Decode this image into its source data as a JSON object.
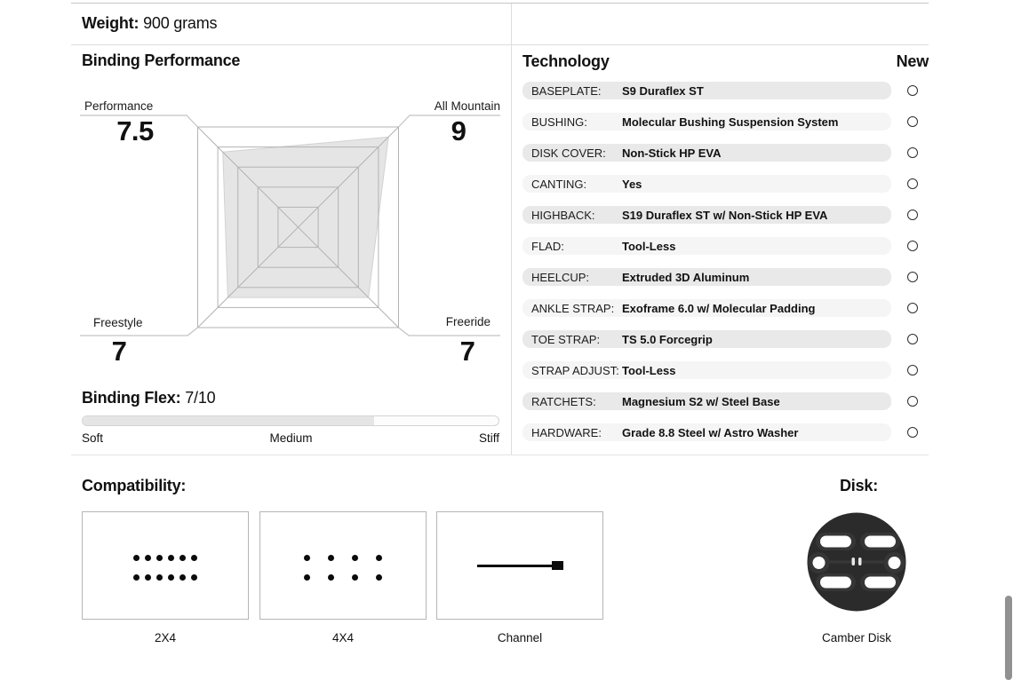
{
  "weight": {
    "label": "Weight:",
    "value": "900 grams"
  },
  "performance_section": {
    "title": "Binding Performance"
  },
  "chart_data": {
    "type": "radar",
    "title": "Binding Performance",
    "max": 10,
    "rings": [
      0.2,
      0.4,
      0.6,
      0.8,
      1.0
    ],
    "axes": [
      {
        "label": "Performance",
        "value": 7.5,
        "position": "top-left"
      },
      {
        "label": "All Mountain",
        "value": 9,
        "position": "top-right"
      },
      {
        "label": "Freeride",
        "value": 7,
        "position": "bottom-right"
      },
      {
        "label": "Freestyle",
        "value": 7,
        "position": "bottom-left"
      }
    ],
    "fill_color": "#e3e3e3",
    "grid_color": "#b3b3b3"
  },
  "flex": {
    "label": "Binding Flex:",
    "value": "7/10",
    "percent": 70,
    "scale": [
      "Soft",
      "Medium",
      "Stiff"
    ]
  },
  "technology": {
    "title": "Technology",
    "new_column": "New",
    "rows": [
      {
        "label": "BASEPLATE:",
        "value": "S9 Duraflex ST"
      },
      {
        "label": "BUSHING:",
        "value": "Molecular Bushing Suspension System"
      },
      {
        "label": "DISK COVER:",
        "value": "Non-Stick HP EVA"
      },
      {
        "label": "CANTING:",
        "value": "Yes"
      },
      {
        "label": "HIGHBACK:",
        "value": "S19 Duraflex ST w/ Non-Stick HP EVA"
      },
      {
        "label": "FLAD:",
        "value": "Tool-Less"
      },
      {
        "label": "HEELCUP:",
        "value": "Extruded 3D Aluminum"
      },
      {
        "label": "ANKLE STRAP:",
        "value": "Exoframe 6.0 w/ Molecular Padding"
      },
      {
        "label": "TOE STRAP:",
        "value": "TS 5.0 Forcegrip"
      },
      {
        "label": "STRAP ADJUST:",
        "value": "Tool-Less"
      },
      {
        "label": "RATCHETS:",
        "value": "Magnesium S2 w/ Steel Base"
      },
      {
        "label": "HARDWARE:",
        "value": "Grade 8.8 Steel w/ Astro Washer"
      }
    ]
  },
  "compatibility": {
    "title": "Compatibility:",
    "options": [
      {
        "label": "2X4",
        "icon": "dots-2x4-icon"
      },
      {
        "label": "4X4",
        "icon": "dots-4x4-icon"
      },
      {
        "label": "Channel",
        "icon": "channel-icon"
      }
    ]
  },
  "disk": {
    "title": "Disk:",
    "label": "Camber Disk",
    "icon": "camber-disk-icon"
  },
  "colors": {
    "row_odd": "#e9e9e9",
    "row_even": "#f5f5f5",
    "divider": "#dedede",
    "disk_body": "#2b2b2b"
  }
}
